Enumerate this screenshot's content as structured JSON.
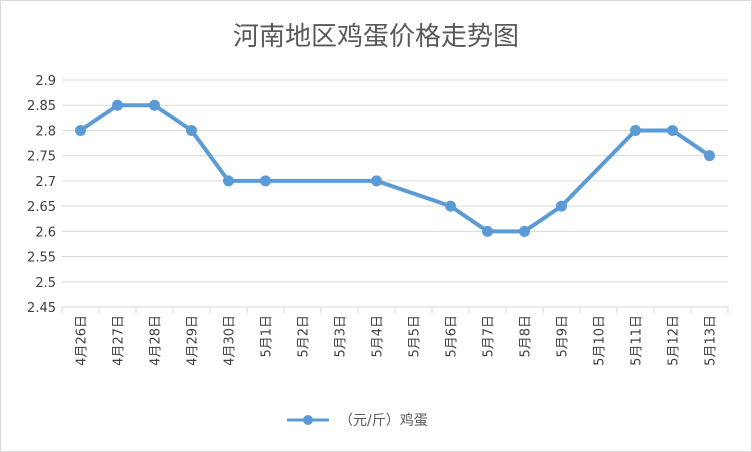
{
  "chart_data": {
    "type": "line",
    "title": "河南地区鸡蛋价格走势图",
    "xlabel": "",
    "ylabel": "",
    "categories": [
      "4月26日",
      "4月27日",
      "4月28日",
      "4月29日",
      "4月30日",
      "5月1日",
      "5月2日",
      "5月3日",
      "5月4日",
      "5月5日",
      "5月6日",
      "5月7日",
      "5月8日",
      "5月9日",
      "5月10日",
      "5月11日",
      "5月12日",
      "5月13日"
    ],
    "series": [
      {
        "name": "（元/斤）鸡蛋",
        "values": [
          2.8,
          2.85,
          2.85,
          2.8,
          2.7,
          2.7,
          null,
          null,
          2.7,
          null,
          2.65,
          2.6,
          2.6,
          2.65,
          null,
          2.8,
          2.8,
          2.75
        ],
        "color": "#5b9bd5"
      }
    ],
    "ylim": [
      2.45,
      2.9
    ],
    "yticks": [
      "2.45",
      "2.5",
      "2.55",
      "2.6",
      "2.65",
      "2.7",
      "2.75",
      "2.8",
      "2.85",
      "2.9"
    ],
    "grid": true,
    "legend_position": "bottom"
  }
}
